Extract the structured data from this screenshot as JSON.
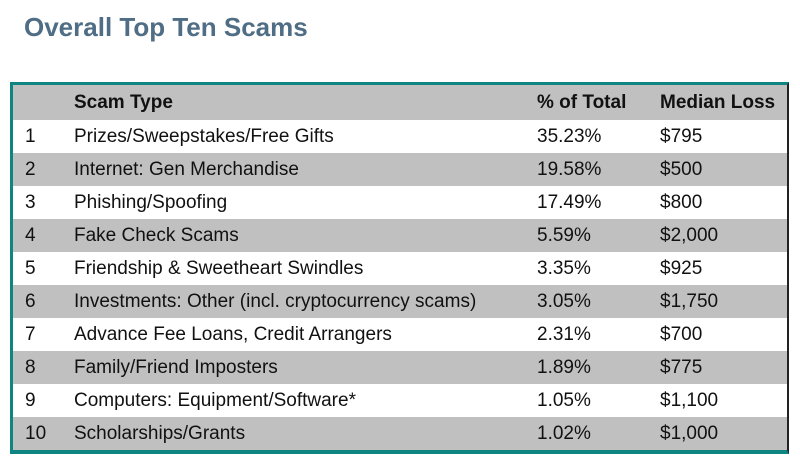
{
  "title": "Overall Top Ten Scams",
  "headers": [
    "",
    "Scam Type",
    "% of Total",
    "Median Loss"
  ],
  "rows": [
    [
      "1",
      "Prizes/Sweepstakes/Free Gifts",
      "35.23%",
      "$795"
    ],
    [
      "2",
      "Internet: Gen Merchandise",
      "19.58%",
      "$500"
    ],
    [
      "3",
      "Phishing/Spoofing",
      "17.49%",
      "$800"
    ],
    [
      "4",
      "Fake Check Scams",
      "5.59%",
      "$2,000"
    ],
    [
      "5",
      "Friendship & Sweetheart Swindles",
      "3.35%",
      "$925"
    ],
    [
      "6",
      "Investments: Other (incl. cryptocurrency scams)",
      "3.05%",
      "$1,750"
    ],
    [
      "7",
      "Advance Fee Loans, Credit Arrangers",
      "2.31%",
      "$700"
    ],
    [
      "8",
      "Family/Friend Imposters",
      "1.89%",
      "$775"
    ],
    [
      "9",
      "Computers: Equipment/Software*",
      "1.05%",
      "$1,100"
    ],
    [
      "10",
      "Scholarships/Grants",
      "1.02%",
      "$1,000"
    ]
  ],
  "colors": {
    "title": "#4f6d84",
    "border": "#0f8582",
    "band": "#c0c0c0"
  }
}
